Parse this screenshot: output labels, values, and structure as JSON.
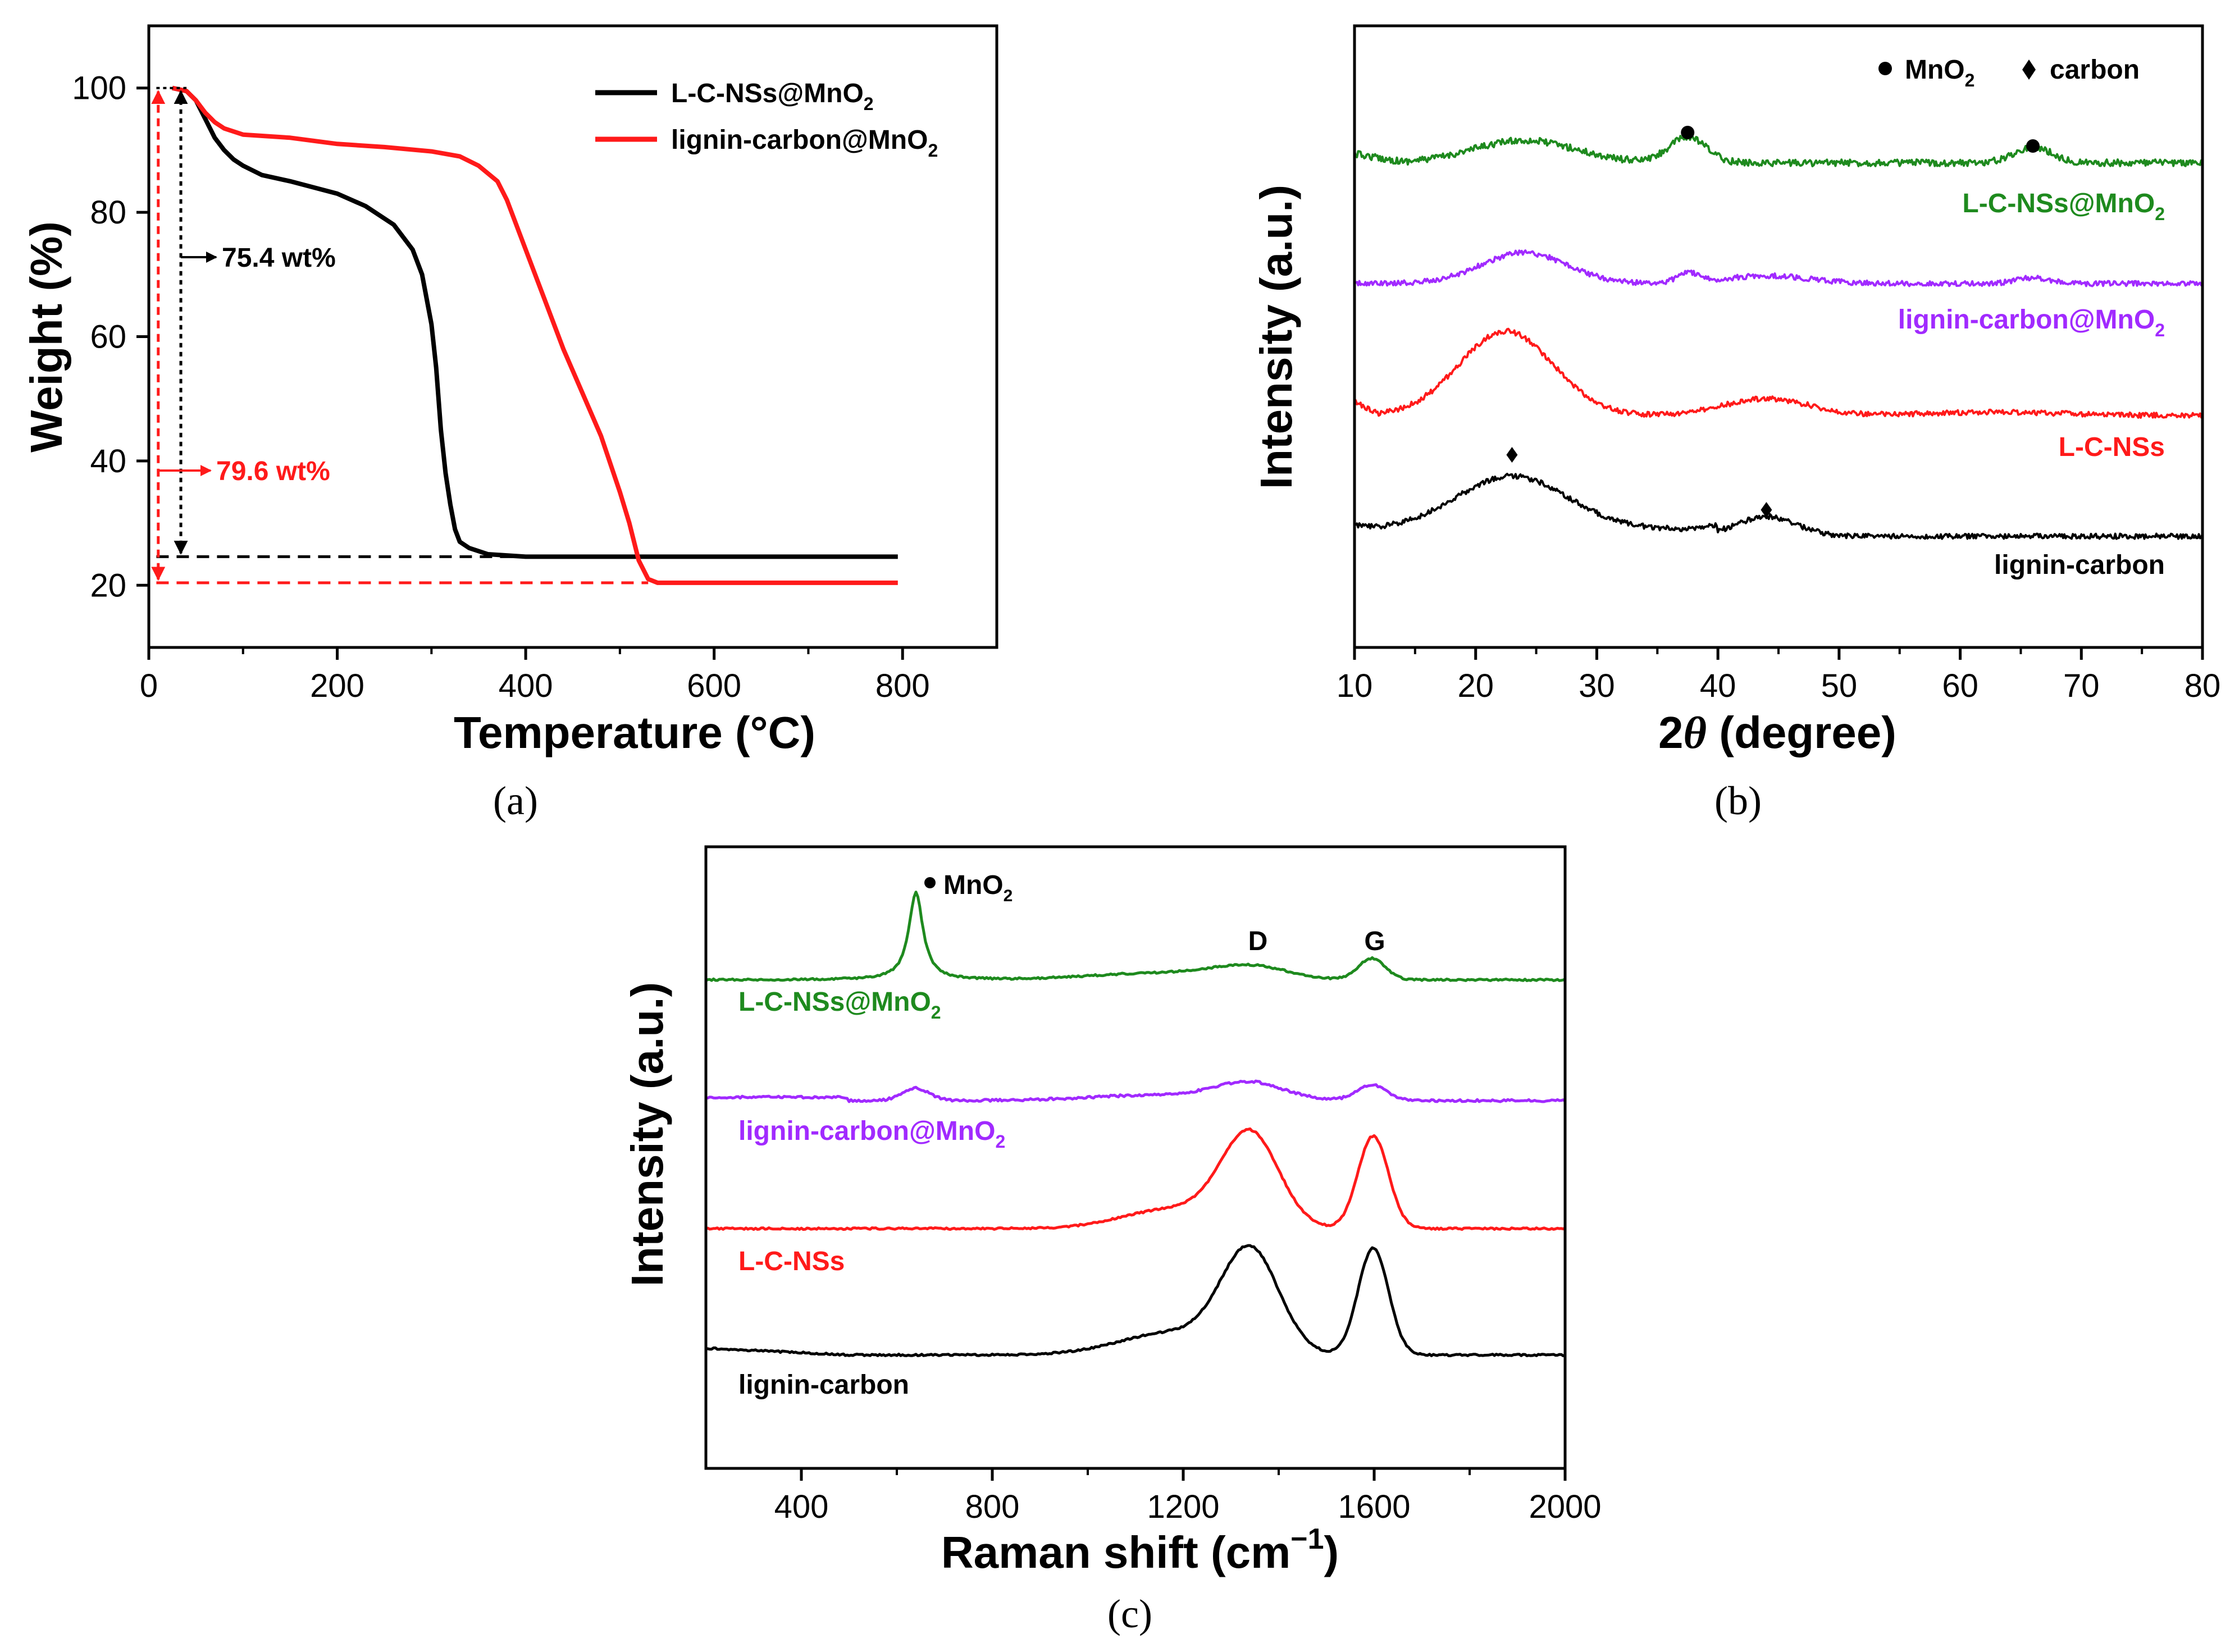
{
  "colors": {
    "black": "#000000",
    "red": "#ff1a1a",
    "green": "#1e8a1e",
    "purple": "#a12aff"
  },
  "chart_data": [
    {
      "id": "a",
      "type": "line",
      "caption": "(a)",
      "xlabel": "Temperature (°C)",
      "ylabel": "Weight (%)",
      "xlim": [
        0,
        900
      ],
      "ylim": [
        10,
        110
      ],
      "xticks": [
        0,
        200,
        400,
        600,
        800
      ],
      "yticks": [
        20,
        40,
        60,
        80,
        100
      ],
      "legend": [
        "L-C-NSs@MnO2",
        "lignin-carbon@MnO2"
      ],
      "series": [
        {
          "name": "L-C-NSs@MnO2",
          "color": "black",
          "x": [
            25,
            40,
            50,
            60,
            70,
            80,
            90,
            100,
            120,
            150,
            200,
            230,
            260,
            280,
            290,
            300,
            305,
            310,
            315,
            320,
            325,
            330,
            340,
            360,
            400,
            450,
            500,
            600,
            700,
            795
          ],
          "y": [
            100,
            99.5,
            98,
            95,
            92,
            90,
            88.5,
            87.5,
            86,
            85,
            83,
            81,
            78,
            74,
            70,
            62,
            55,
            45,
            38,
            33,
            29,
            27,
            26,
            25,
            24.6,
            24.6,
            24.6,
            24.6,
            24.6,
            24.6
          ]
        },
        {
          "name": "lignin-carbon@MnO2",
          "color": "red",
          "x": [
            25,
            40,
            50,
            60,
            70,
            80,
            100,
            150,
            200,
            250,
            300,
            330,
            350,
            370,
            380,
            400,
            420,
            440,
            460,
            480,
            500,
            510,
            520,
            530,
            540,
            560,
            600,
            700,
            795
          ],
          "y": [
            100,
            99.5,
            98,
            96,
            94.5,
            93.5,
            92.5,
            92,
            91,
            90.5,
            89.8,
            89,
            87.5,
            85,
            82,
            74,
            66,
            58,
            51,
            44,
            35,
            30,
            24,
            21,
            20.4,
            20.4,
            20.4,
            20.4,
            20.4
          ]
        }
      ],
      "annotations": [
        "75.4 wt%",
        "79.6 wt%"
      ]
    },
    {
      "id": "b",
      "type": "line",
      "caption": "(b)",
      "xlabel": "2θ (degree)",
      "ylabel": "Intensity (a.u.)",
      "xlim": [
        10,
        80
      ],
      "xticks": [
        10,
        20,
        30,
        40,
        50,
        60,
        70,
        80
      ],
      "legend": [
        "MnO2",
        "carbon"
      ],
      "series": [
        {
          "name": "L-C-NSs@MnO2",
          "color": "green"
        },
        {
          "name": "lignin-carbon@MnO2",
          "color": "purple"
        },
        {
          "name": "L-C-NSs",
          "color": "red"
        },
        {
          "name": "lignin-carbon",
          "color": "black"
        }
      ],
      "peak_markers": {
        "MnO2": [
          37.5,
          66
        ],
        "carbon": [
          23,
          44
        ]
      }
    },
    {
      "id": "c",
      "type": "line",
      "caption": "(c)",
      "xlabel": "Raman shift (cm−1)",
      "ylabel": "Intensity (a.u.)",
      "xlim": [
        200,
        2000
      ],
      "xticks": [
        400,
        800,
        1200,
        1600,
        2000
      ],
      "series": [
        {
          "name": "L-C-NSs@MnO2",
          "color": "green"
        },
        {
          "name": "lignin-carbon@MnO2",
          "color": "purple"
        },
        {
          "name": "L-C-NSs",
          "color": "red"
        },
        {
          "name": "lignin-carbon",
          "color": "black"
        }
      ],
      "annotations": [
        "MnO2",
        "D",
        "G"
      ],
      "peaks": {
        "MnO2": 640,
        "D": 1340,
        "G": 1595
      }
    }
  ]
}
